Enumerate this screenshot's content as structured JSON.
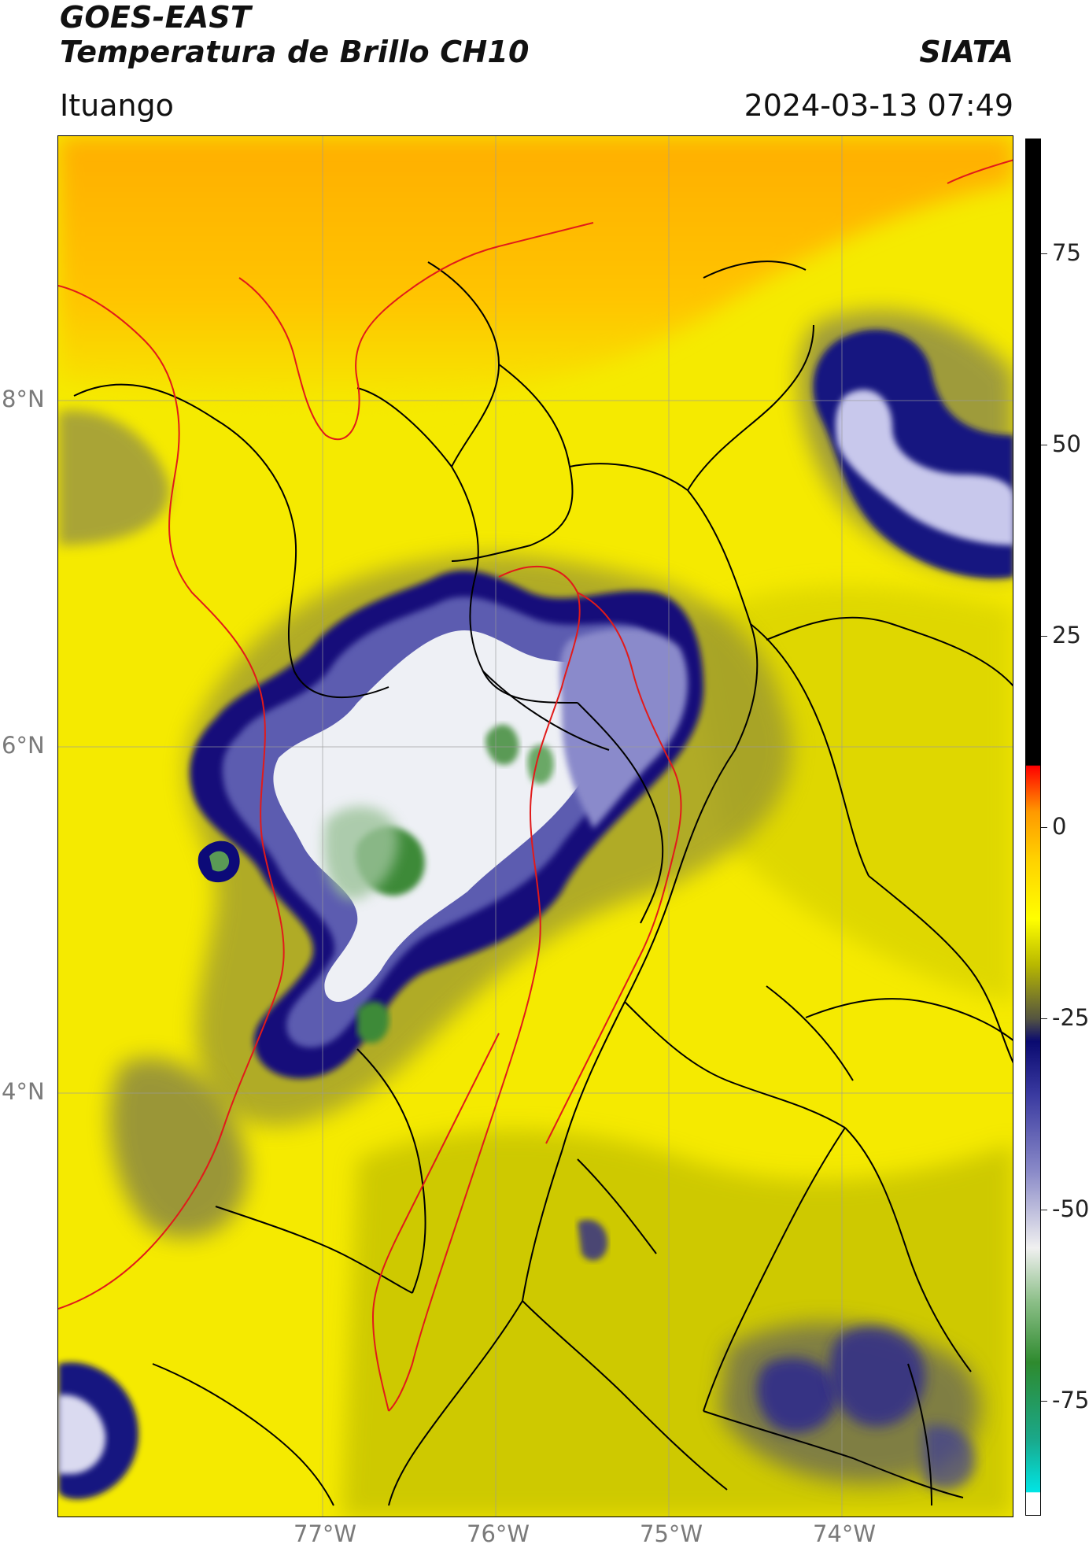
{
  "header": {
    "line1": "GOES-EAST",
    "line2": "Temperatura de Brillo CH10",
    "brand": "SIATA",
    "location": "Ituango",
    "datetime": "2024-03-13 07:49"
  },
  "map": {
    "lat_labels": [
      {
        "text": "8°N",
        "value": 8
      },
      {
        "text": "6°N",
        "value": 6
      },
      {
        "text": "4°N",
        "value": 4
      }
    ],
    "lon_labels": [
      {
        "text": "77°W",
        "value": -77
      },
      {
        "text": "76°W",
        "value": -76
      },
      {
        "text": "75°W",
        "value": -75
      },
      {
        "text": "74°W",
        "value": -74
      }
    ],
    "colors": {
      "warm_background": "#f5ea00",
      "north_orange": "#ffae00",
      "cold_core": "#ffffff",
      "deep_blue": "#0c0a78",
      "green_core": "#3c8a38",
      "department_border": "#000000",
      "highlight_border": "#e11a1a"
    }
  },
  "colorbar": {
    "labels": [
      {
        "text": "75",
        "value": 75
      },
      {
        "text": "50",
        "value": 50
      },
      {
        "text": "25",
        "value": 25
      },
      {
        "text": "0",
        "value": 0
      },
      {
        "text": "-25",
        "value": -25
      },
      {
        "text": "-50",
        "value": -50
      },
      {
        "text": "-75",
        "value": -75
      }
    ],
    "range": [
      -90,
      90
    ],
    "stops": [
      {
        "value": -90,
        "color": "#ffffff"
      },
      {
        "value": -87,
        "color": "#ffffff"
      },
      {
        "value": -86.9,
        "color": "#00e5e5"
      },
      {
        "value": -80,
        "color": "#1aa88a"
      },
      {
        "value": -70,
        "color": "#2e8a2e"
      },
      {
        "value": -62,
        "color": "#8cbf88"
      },
      {
        "value": -55,
        "color": "#f0f0f0"
      },
      {
        "value": -45,
        "color": "#8a8ac8"
      },
      {
        "value": -35,
        "color": "#3a3aa0"
      },
      {
        "value": -28,
        "color": "#0a0a70"
      },
      {
        "value": -25,
        "color": "#555540"
      },
      {
        "value": -18,
        "color": "#b8b800"
      },
      {
        "value": -12,
        "color": "#ffff00"
      },
      {
        "value": -4,
        "color": "#ffd000"
      },
      {
        "value": 2,
        "color": "#ff9900"
      },
      {
        "value": 8,
        "color": "#ff0000"
      },
      {
        "value": 8.1,
        "color": "#000000"
      },
      {
        "value": 90,
        "color": "#000000"
      }
    ]
  }
}
